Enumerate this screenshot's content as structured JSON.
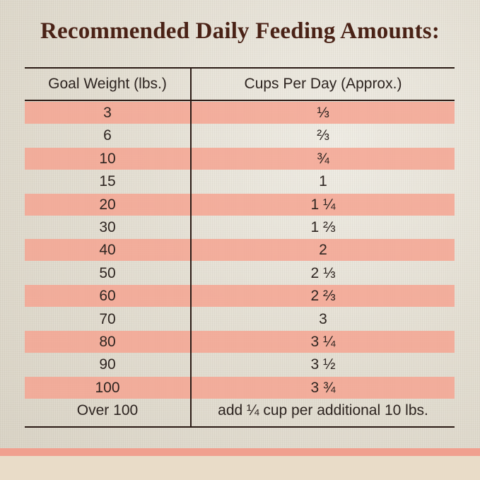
{
  "title": "Recommended Daily Feeding Amounts:",
  "table": {
    "header": [
      "Goal Weight (lbs.)",
      "Cups Per Day (Approx.)"
    ],
    "rows": [
      [
        "3",
        "⅓"
      ],
      [
        "6",
        "⅔"
      ],
      [
        "10",
        "¾"
      ],
      [
        "15",
        "1"
      ],
      [
        "20",
        "1 ¼"
      ],
      [
        "30",
        "1 ⅔"
      ],
      [
        "40",
        "2"
      ],
      [
        "50",
        "2 ⅓"
      ],
      [
        "60",
        "2 ⅔"
      ],
      [
        "70",
        "3"
      ],
      [
        "80",
        "3 ¼"
      ],
      [
        "90",
        "3 ½"
      ],
      [
        "100",
        "3 ¾"
      ],
      [
        "Over 100",
        "add ¼ cup per additional 10 lbs."
      ]
    ]
  }
}
